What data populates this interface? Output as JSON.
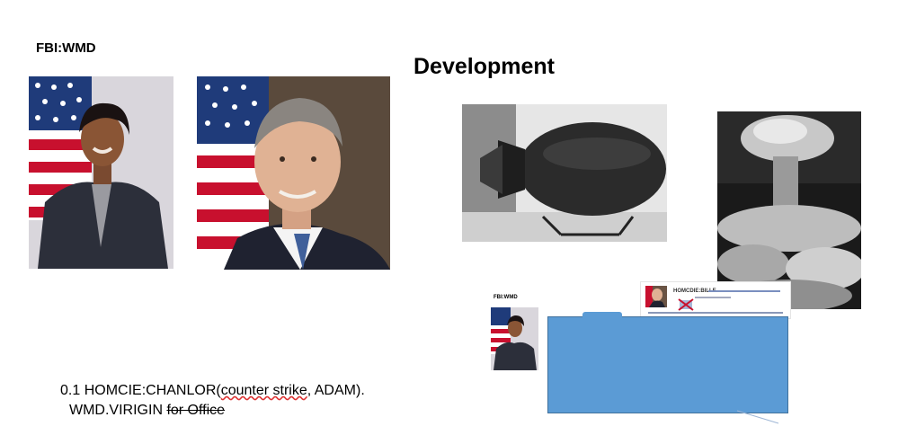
{
  "slide": {
    "top_label": "FBI:WMD",
    "heading": "Development",
    "caption": {
      "line1_prefix": "0.1 HOMCIE:CHANLOR(",
      "line1_struck": "counter strike",
      "line1_suffix": ", ADAM).",
      "line2_prefix": "WMD.VIRIGIN ",
      "line2_struck": "for Office"
    }
  },
  "thumbnail": {
    "label": "FBI:WMD",
    "doc_title": "HOMCDIE:BILLE"
  },
  "colors": {
    "blue_box": "#5b9bd5",
    "blue_box_border": "#41719c",
    "flag_red": "#c8102e",
    "flag_blue": "#1f3b7a"
  }
}
